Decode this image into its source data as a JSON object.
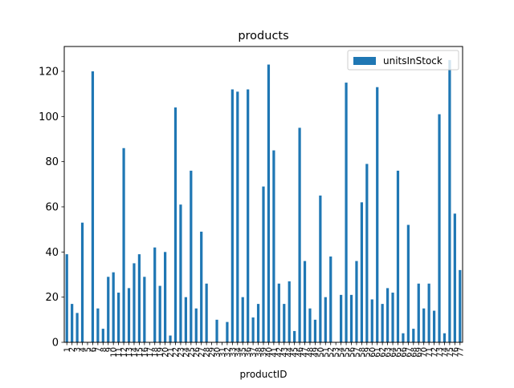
{
  "chart_data": {
    "type": "bar",
    "title": "products",
    "xlabel": "productID",
    "ylabel": "",
    "ylim": [
      0,
      131
    ],
    "yticks": [
      0,
      20,
      40,
      60,
      80,
      100,
      120
    ],
    "legend": {
      "placement": "top-right",
      "entries": [
        "unitsInStock"
      ]
    },
    "grid": false,
    "bar_color": "#1f77b4",
    "categories": [
      "1",
      "2",
      "3",
      "4",
      "5",
      "6",
      "7",
      "8",
      "9",
      "10",
      "11",
      "12",
      "13",
      "14",
      "15",
      "16",
      "17",
      "18",
      "19",
      "20",
      "21",
      "22",
      "23",
      "24",
      "25",
      "26",
      "27",
      "28",
      "29",
      "30",
      "31",
      "32",
      "33",
      "34",
      "35",
      "36",
      "37",
      "38",
      "39",
      "40",
      "41",
      "42",
      "43",
      "44",
      "45",
      "46",
      "47",
      "48",
      "49",
      "50",
      "51",
      "52",
      "53",
      "54",
      "55",
      "56",
      "57",
      "58",
      "59",
      "60",
      "61",
      "62",
      "63",
      "64",
      "65",
      "66",
      "67",
      "68",
      "69",
      "70",
      "71",
      "72",
      "73",
      "74",
      "75",
      "76",
      "77"
    ],
    "series": [
      {
        "name": "unitsInStock",
        "values": [
          39,
          17,
          13,
          53,
          0,
          120,
          15,
          6,
          29,
          31,
          22,
          86,
          24,
          35,
          39,
          29,
          0,
          42,
          25,
          40,
          3,
          104,
          61,
          20,
          76,
          15,
          49,
          26,
          0,
          10,
          0,
          9,
          112,
          111,
          20,
          112,
          11,
          17,
          69,
          123,
          85,
          26,
          17,
          27,
          5,
          95,
          36,
          15,
          10,
          65,
          20,
          38,
          0,
          21,
          115,
          21,
          36,
          62,
          79,
          19,
          113,
          17,
          24,
          22,
          76,
          4,
          52,
          6,
          26,
          15,
          26,
          14,
          101,
          4,
          125,
          57,
          32
        ]
      }
    ]
  }
}
